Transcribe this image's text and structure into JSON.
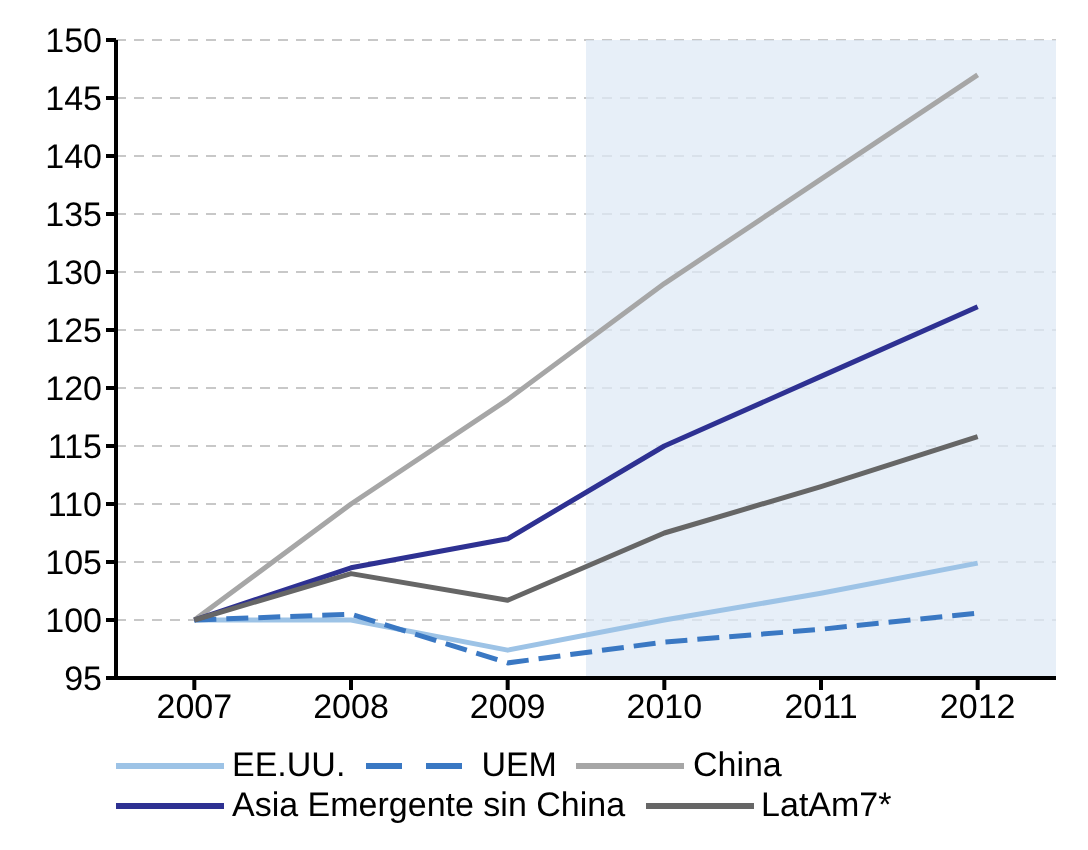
{
  "chart_data": {
    "type": "line",
    "x": [
      2007,
      2008,
      2009,
      2010,
      2011,
      2012
    ],
    "xlim": [
      2006.5,
      2012.5
    ],
    "xticks": [
      2007,
      2008,
      2009,
      2010,
      2011,
      2012
    ],
    "ylim": [
      95,
      150
    ],
    "yticks": [
      95,
      100,
      105,
      110,
      115,
      120,
      125,
      130,
      135,
      140,
      145,
      150
    ],
    "grid": "y",
    "legend": "bottom",
    "marker": "none",
    "bands": [
      {
        "axis": "x",
        "from": 2009.5,
        "to": 2012.5,
        "color": "#dfeaf6"
      }
    ],
    "series": [
      {
        "name": "EE.UU.",
        "color": "#9dc3e6",
        "values": [
          100,
          100,
          97.4,
          100,
          102.3,
          104.9
        ]
      },
      {
        "name": "UEM",
        "color": "#3a78c3",
        "line_style": "dashed",
        "values": [
          100,
          100.5,
          96.3,
          98.1,
          99.2,
          100.6
        ]
      },
      {
        "name": "China",
        "color": "#a6a6a6",
        "values": [
          100,
          110,
          119,
          129,
          138,
          147
        ]
      },
      {
        "name": "Asia Emergente sin China",
        "color": "#2e3192",
        "values": [
          100,
          104.5,
          107,
          115,
          121,
          127
        ]
      },
      {
        "name": "LatAm7*",
        "color": "#666666",
        "values": [
          100,
          104,
          101.7,
          107.5,
          111.5,
          115.8
        ]
      }
    ]
  }
}
